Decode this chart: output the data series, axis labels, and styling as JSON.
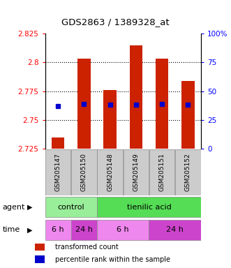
{
  "title": "GDS2863 / 1389328_at",
  "samples": [
    "GSM205147",
    "GSM205150",
    "GSM205148",
    "GSM205149",
    "GSM205151",
    "GSM205152"
  ],
  "bar_bottoms": [
    2.725,
    2.725,
    2.725,
    2.725,
    2.725,
    2.725
  ],
  "bar_tops": [
    2.735,
    2.803,
    2.776,
    2.815,
    2.803,
    2.784
  ],
  "blue_dot_y": [
    2.762,
    2.764,
    2.763,
    2.763,
    2.764,
    2.763
  ],
  "ylim": [
    2.725,
    2.825
  ],
  "yticks_left": [
    2.725,
    2.75,
    2.775,
    2.8,
    2.825
  ],
  "yticks_right_pct": [
    0,
    25,
    50,
    75,
    100
  ],
  "yticks_right_labels": [
    "0",
    "25",
    "50",
    "75",
    "100%"
  ],
  "bar_color": "#cc2200",
  "blue_color": "#0000cc",
  "grid_yticks": [
    2.75,
    2.775,
    2.8
  ],
  "bar_width": 0.5,
  "agent_control_color": "#99ee99",
  "agent_tienilic_color": "#55dd55",
  "time_6h_color": "#ee88ee",
  "time_24h_color": "#cc44cc",
  "label_box_color": "#cccccc",
  "legend_red_label": "transformed count",
  "legend_blue_label": "percentile rank within the sample"
}
